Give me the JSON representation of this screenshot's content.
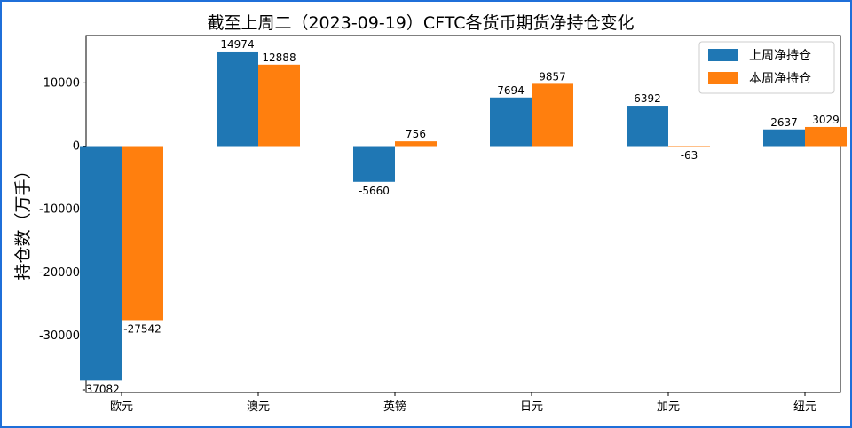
{
  "chart_data": {
    "type": "bar",
    "title": "截至上周二（2023-09-19）CFTC各货币期货净持仓变化",
    "xlabel": "",
    "ylabel": "持仓数（万手）",
    "categories": [
      "欧元",
      "澳元",
      "英镑",
      "日元",
      "加元",
      "纽元"
    ],
    "series": [
      {
        "name": "上周净持仓",
        "color": "#1f77b4",
        "values": [
          -37082,
          14974,
          -5660,
          7694,
          6392,
          2637
        ]
      },
      {
        "name": "本周净持仓",
        "color": "#ff7f0e",
        "values": [
          -27542,
          12888,
          756,
          9857,
          -63,
          3029
        ]
      }
    ],
    "yticks": [
      -30000,
      -20000,
      -10000,
      0,
      10000
    ],
    "ylim": [
      -39000,
      17500
    ],
    "grid": false,
    "legend": "top-right"
  }
}
